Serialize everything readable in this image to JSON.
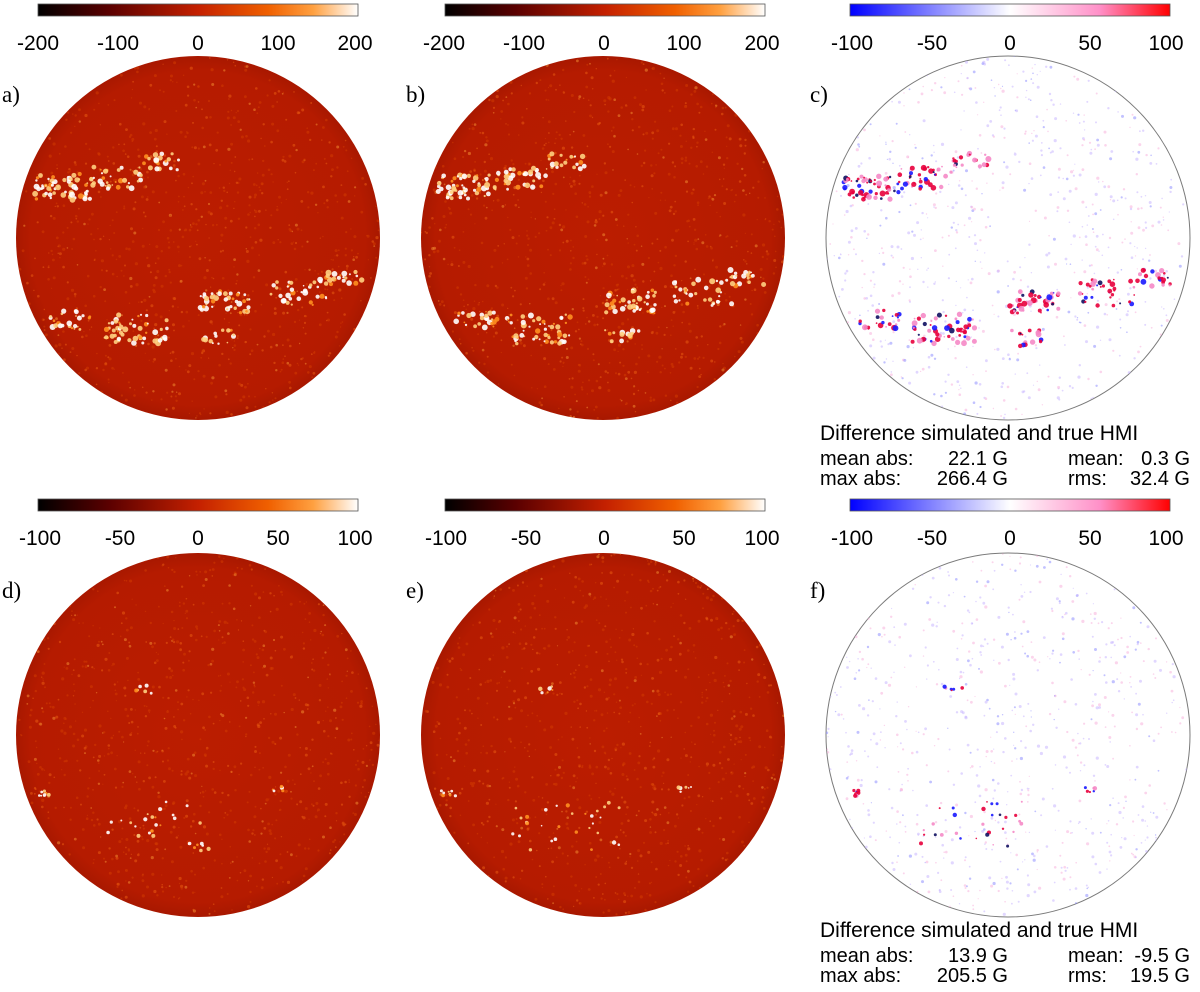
{
  "colors": {
    "disk_base": "#b81c00",
    "disk_edge": "#a51700",
    "difference_outline": "#7a7a7a",
    "positive": "#e8003c",
    "negative": "#1a1aff"
  },
  "rows": [
    {
      "panels": [
        {
          "label": "a)",
          "type": "magnetogram",
          "colorbar": {
            "scale": "black-red-orange-white",
            "ticks": [
              "-200",
              "-100",
              "0",
              "100",
              "200"
            ]
          },
          "activity": "high"
        },
        {
          "label": "b)",
          "type": "magnetogram",
          "colorbar": {
            "scale": "black-red-orange-white",
            "ticks": [
              "-200",
              "-100",
              "0",
              "100",
              "200"
            ]
          },
          "activity": "high"
        },
        {
          "label": "c)",
          "type": "difference",
          "colorbar": {
            "scale": "blue-white-red",
            "ticks": [
              "-100",
              "-50",
              "0",
              "50",
              "100"
            ]
          },
          "activity": "high"
        }
      ],
      "stats": {
        "title": "Difference simulated and true HMI",
        "mean_abs": {
          "label": "mean abs:",
          "value": "22.1 G"
        },
        "mean": {
          "label": "mean:",
          "value": "0.3 G"
        },
        "max_abs": {
          "label": "max abs:",
          "value": "266.4 G"
        },
        "rms": {
          "label": "rms:",
          "value": "32.4 G"
        }
      }
    },
    {
      "panels": [
        {
          "label": "d)",
          "type": "magnetogram",
          "colorbar": {
            "scale": "black-red-orange-white",
            "ticks": [
              "-100",
              "-50",
              "0",
              "50",
              "100"
            ]
          },
          "activity": "low"
        },
        {
          "label": "e)",
          "type": "magnetogram",
          "colorbar": {
            "scale": "black-red-orange-white",
            "ticks": [
              "-100",
              "-50",
              "0",
              "50",
              "100"
            ]
          },
          "activity": "low"
        },
        {
          "label": "f)",
          "type": "difference",
          "colorbar": {
            "scale": "blue-white-red",
            "ticks": [
              "-100",
              "-50",
              "0",
              "50",
              "100"
            ]
          },
          "activity": "low"
        }
      ],
      "stats": {
        "title": "Difference simulated and true HMI",
        "mean_abs": {
          "label": "mean abs:",
          "value": "13.9 G"
        },
        "mean": {
          "label": "mean:",
          "value": "-9.5 G"
        },
        "max_abs": {
          "label": "max abs:",
          "value": "205.5 G"
        },
        "rms": {
          "label": "rms:",
          "value": "19.5 G"
        }
      }
    }
  ]
}
